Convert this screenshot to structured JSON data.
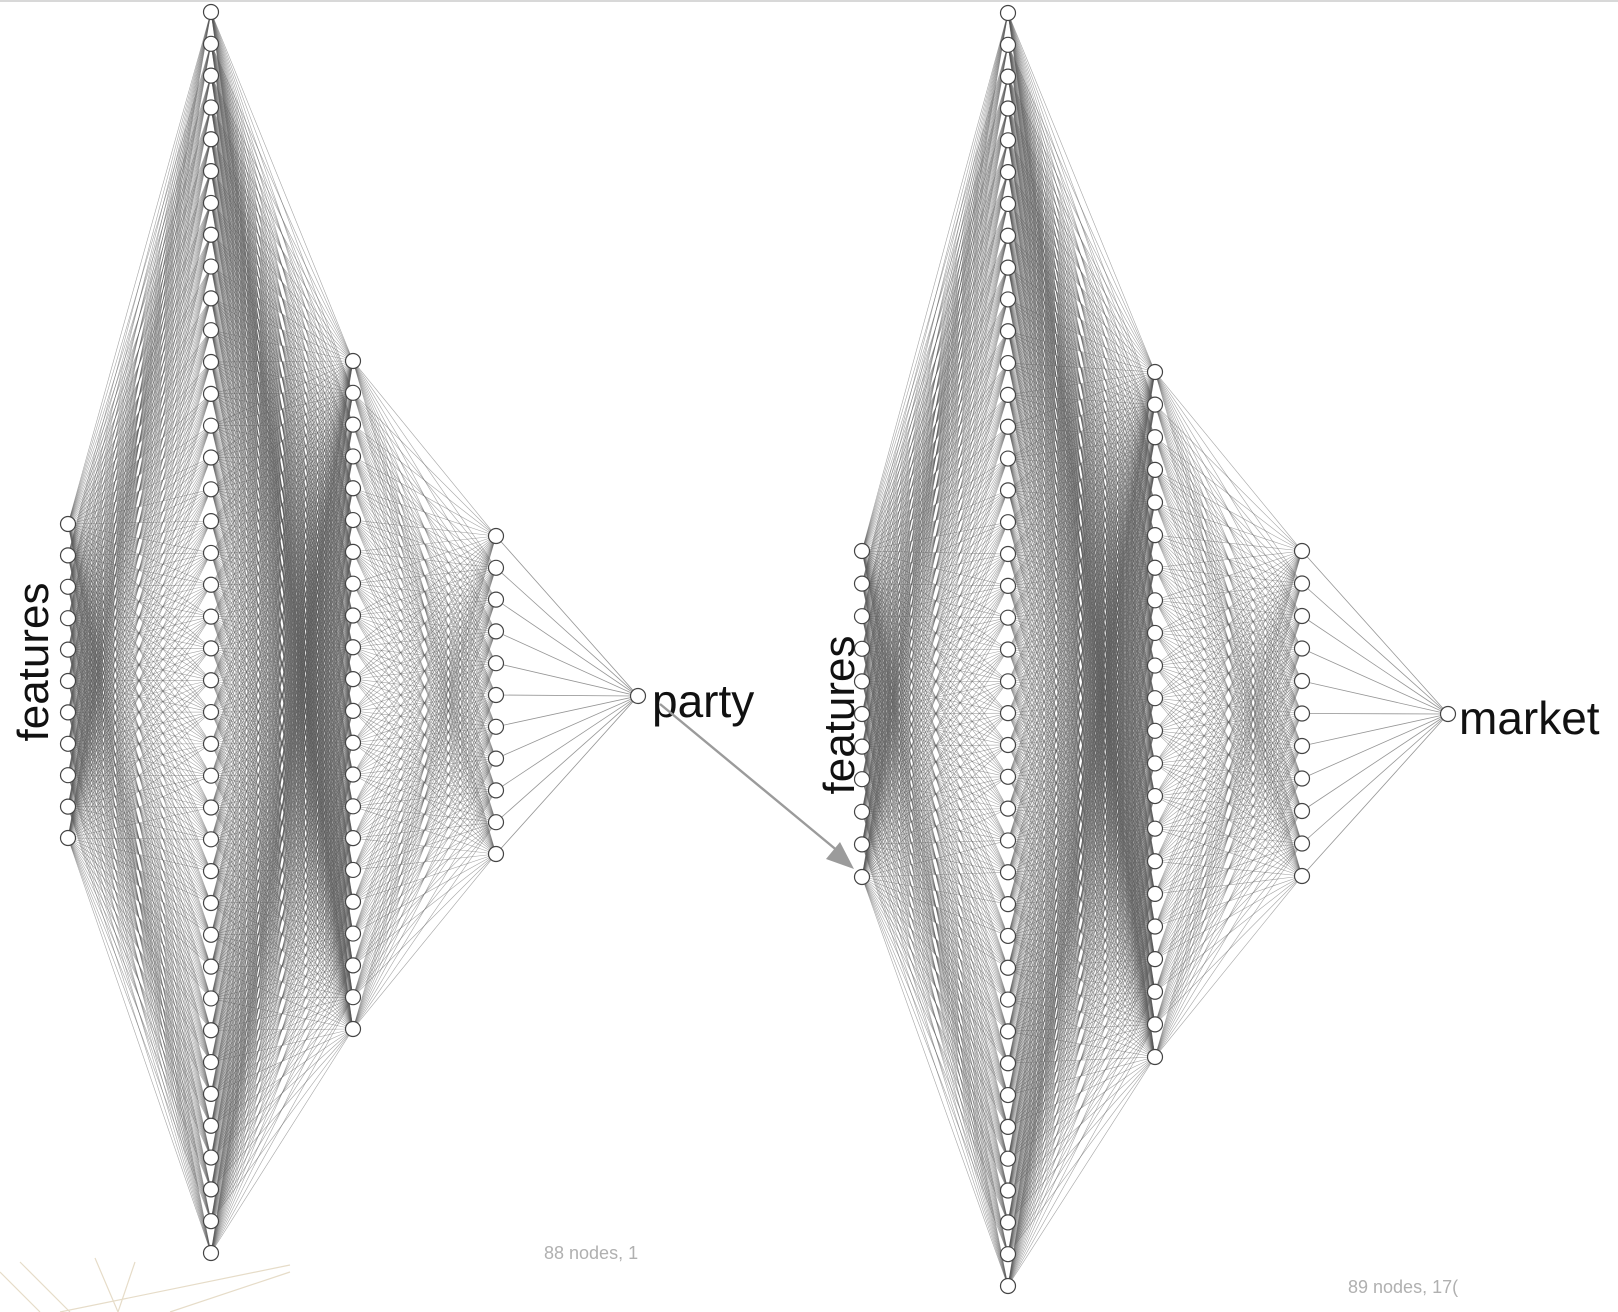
{
  "networks": [
    {
      "id": "party",
      "feature_label": "features",
      "output_label": "party",
      "caption": "88 nodes, 1",
      "layers": [
        11,
        40,
        22,
        11,
        1
      ]
    },
    {
      "id": "market",
      "feature_label": "features",
      "output_label": "market",
      "caption": "89 nodes, 17(",
      "layers": [
        11,
        41,
        22,
        11,
        1
      ]
    }
  ],
  "connection": {
    "from": "party",
    "to": "market"
  },
  "colors": {
    "edge": "#5a5a5a",
    "node_stroke": "#444444",
    "arrow": "#9b9b9b",
    "caption": "#b0b0b0"
  }
}
